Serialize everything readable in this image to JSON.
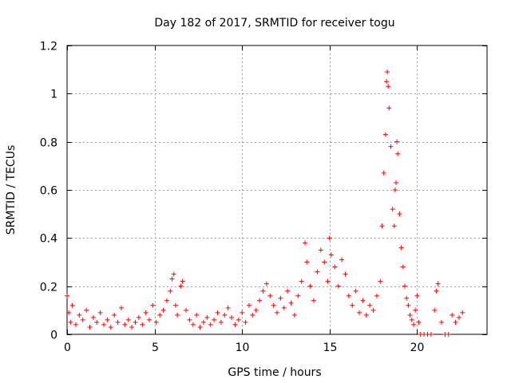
{
  "chart_data": {
    "type": "scatter",
    "title": "Day 182 of 2017, SRMTID for receiver togu",
    "xlabel": "GPS time / hours",
    "ylabel": "SRMTID / TECUs",
    "xlim": [
      0,
      24
    ],
    "ylim": [
      0,
      1.2
    ],
    "xticks": [
      0,
      5,
      10,
      15,
      20
    ],
    "yticks": [
      0,
      0.2,
      0.4,
      0.6,
      0.8,
      1,
      1.2
    ],
    "grid": true,
    "marker": "+",
    "series": [
      {
        "name": "SRMTID",
        "color": "#ff0000",
        "x": [
          0.0,
          0.1,
          0.2,
          0.3,
          0.5,
          0.7,
          0.9,
          1.1,
          1.3,
          1.5,
          1.7,
          1.9,
          2.1,
          2.3,
          2.5,
          2.7,
          2.9,
          3.1,
          3.3,
          3.5,
          3.7,
          3.9,
          4.1,
          4.3,
          4.5,
          4.7,
          4.9,
          5.1,
          5.3,
          5.5,
          5.7,
          5.9,
          6.0,
          6.1,
          6.2,
          6.3,
          6.5,
          6.6,
          6.8,
          7.0,
          7.2,
          7.4,
          7.6,
          7.8,
          8.0,
          8.2,
          8.4,
          8.6,
          8.8,
          9.0,
          9.2,
          9.4,
          9.6,
          9.8,
          10.0,
          10.2,
          10.4,
          10.6,
          10.8,
          11.0,
          11.2,
          11.4,
          11.6,
          11.8,
          12.0,
          12.2,
          12.4,
          12.6,
          12.8,
          13.0,
          13.2,
          13.4,
          13.6,
          13.7,
          13.9,
          14.1,
          14.3,
          14.5,
          14.7,
          14.9,
          15.0,
          15.1,
          15.3,
          15.5,
          15.7,
          15.9,
          16.1,
          16.3,
          16.5,
          16.7,
          16.9,
          17.1,
          17.3,
          17.5,
          17.7,
          17.9,
          18.0,
          18.1,
          18.2,
          18.25,
          18.3,
          18.35,
          18.4,
          18.5,
          18.6,
          18.7,
          18.75,
          18.8,
          18.85,
          18.9,
          19.0,
          19.1,
          19.2,
          19.3,
          19.4,
          19.5,
          19.6,
          19.7,
          19.8,
          19.9,
          20.0,
          20.1,
          20.2,
          20.4,
          20.6,
          20.8,
          21.0,
          21.1,
          21.2,
          21.4,
          21.6,
          21.8,
          22.0,
          22.2,
          22.4,
          22.6
        ],
        "y": [
          0.16,
          0.09,
          0.05,
          0.12,
          0.04,
          0.08,
          0.06,
          0.1,
          0.03,
          0.07,
          0.05,
          0.09,
          0.04,
          0.06,
          0.03,
          0.08,
          0.05,
          0.11,
          0.04,
          0.06,
          0.03,
          0.05,
          0.07,
          0.04,
          0.09,
          0.06,
          0.12,
          0.05,
          0.08,
          0.1,
          0.14,
          0.18,
          0.23,
          0.25,
          0.12,
          0.08,
          0.2,
          0.22,
          0.1,
          0.06,
          0.04,
          0.08,
          0.03,
          0.05,
          0.07,
          0.04,
          0.06,
          0.09,
          0.05,
          0.08,
          0.11,
          0.07,
          0.04,
          0.06,
          0.09,
          0.05,
          0.12,
          0.08,
          0.1,
          0.14,
          0.18,
          0.21,
          0.16,
          0.12,
          0.09,
          0.15,
          0.11,
          0.18,
          0.13,
          0.08,
          0.16,
          0.22,
          0.38,
          0.3,
          0.2,
          0.14,
          0.26,
          0.35,
          0.3,
          0.22,
          0.4,
          0.33,
          0.28,
          0.2,
          0.31,
          0.25,
          0.16,
          0.12,
          0.18,
          0.09,
          0.14,
          0.08,
          0.12,
          0.1,
          0.16,
          0.22,
          0.45,
          0.67,
          0.83,
          1.05,
          1.09,
          1.03,
          0.94,
          0.78,
          0.52,
          0.45,
          0.6,
          0.63,
          0.8,
          0.75,
          0.5,
          0.36,
          0.28,
          0.2,
          0.15,
          0.12,
          0.08,
          0.06,
          0.04,
          0.1,
          0.16,
          0.05,
          0.0,
          0.0,
          0.0,
          0.0,
          0.1,
          0.18,
          0.21,
          0.05,
          0.0,
          0.0,
          0.08,
          0.05,
          0.07,
          0.09
        ]
      }
    ]
  }
}
